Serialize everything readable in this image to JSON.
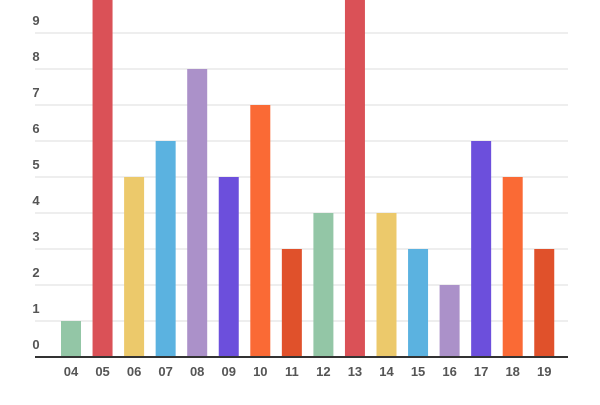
{
  "chart_data": {
    "type": "bar",
    "categories": [
      "04",
      "05",
      "06",
      "07",
      "08",
      "09",
      "10",
      "11",
      "12",
      "13",
      "14",
      "15",
      "16",
      "17",
      "18",
      "19"
    ],
    "values": [
      1,
      10,
      5,
      6,
      8,
      5,
      7,
      3,
      4,
      10,
      4,
      3,
      2,
      6,
      5,
      3
    ],
    "colors": [
      "#93c6a6",
      "#da5157",
      "#ecc96b",
      "#5bb2e0",
      "#ab91c9",
      "#6c4fdc",
      "#fa6a35",
      "#e0512b",
      "#93c6a6",
      "#da5157",
      "#ecc96b",
      "#5bb2e0",
      "#ab91c9",
      "#6c4fdc",
      "#fa6a35",
      "#e0512b"
    ],
    "y_ticks": [
      "0",
      "1",
      "2",
      "3",
      "4",
      "5",
      "6",
      "7",
      "8",
      "9"
    ],
    "ylim": [
      0,
      9.9
    ],
    "grid": true,
    "title": "",
    "xlabel": "",
    "ylabel": ""
  }
}
